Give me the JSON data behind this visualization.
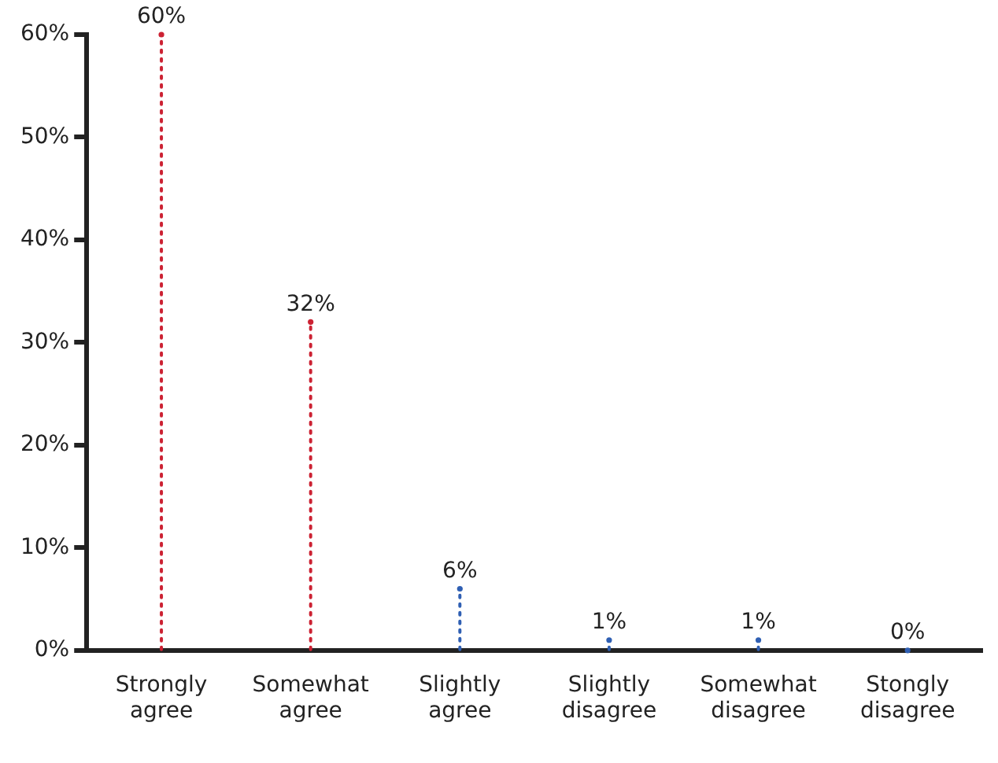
{
  "chart_data": {
    "type": "lollipop",
    "categories": [
      "Strongly agree",
      "Somewhat agree",
      "Slightly agree",
      "Slightly disagree",
      "Somewhat disagree",
      "Stongly disagree"
    ],
    "values": [
      60,
      32,
      6,
      1,
      1,
      0
    ],
    "colors": [
      "#cc2233",
      "#cc2233",
      "#2f5fb3",
      "#2f5fb3",
      "#2f5fb3",
      "#2f5fb3"
    ],
    "value_labels": [
      "60%",
      "32%",
      "6%",
      "1%",
      "1%",
      "0%"
    ],
    "ylim": [
      0,
      60
    ],
    "yticks": [
      {
        "value": 0,
        "label": "0%"
      },
      {
        "value": 10,
        "label": "10%"
      },
      {
        "value": 20,
        "label": "20%"
      },
      {
        "value": 30,
        "label": "30%"
      },
      {
        "value": 40,
        "label": "40%"
      },
      {
        "value": 50,
        "label": "50%"
      },
      {
        "value": 60,
        "label": "60%"
      }
    ],
    "line_style": "dotted",
    "grid": false,
    "legend": false
  }
}
